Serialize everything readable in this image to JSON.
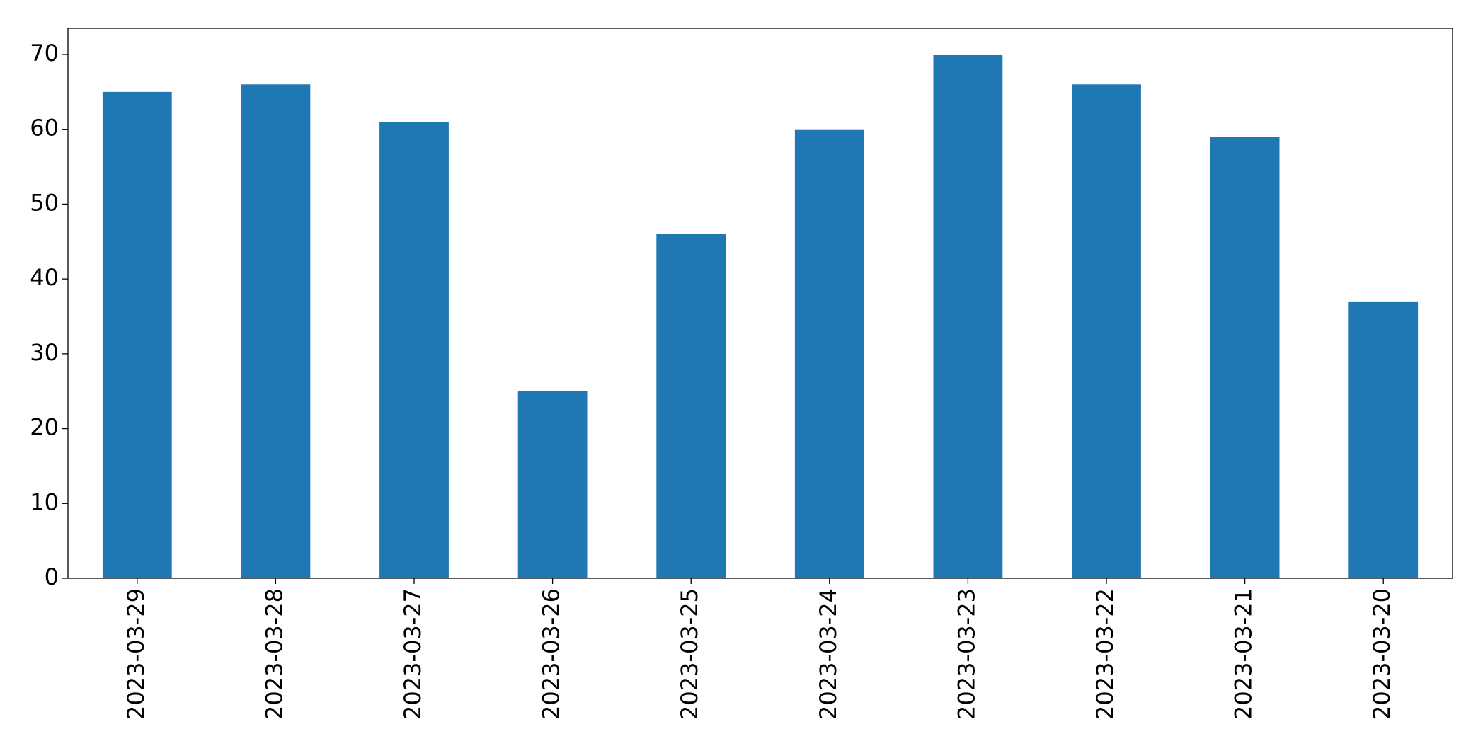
{
  "chart_data": {
    "type": "bar",
    "categories": [
      "2023-03-29",
      "2023-03-28",
      "2023-03-27",
      "2023-03-26",
      "2023-03-25",
      "2023-03-24",
      "2023-03-23",
      "2023-03-22",
      "2023-03-21",
      "2023-03-20"
    ],
    "values": [
      65,
      66,
      61,
      25,
      46,
      60,
      70,
      66,
      59,
      37
    ],
    "color": "#1f77b4",
    "ylim": [
      0,
      73.5
    ],
    "yticks": [
      0,
      10,
      20,
      30,
      40,
      50,
      60,
      70
    ],
    "grid": false
  }
}
